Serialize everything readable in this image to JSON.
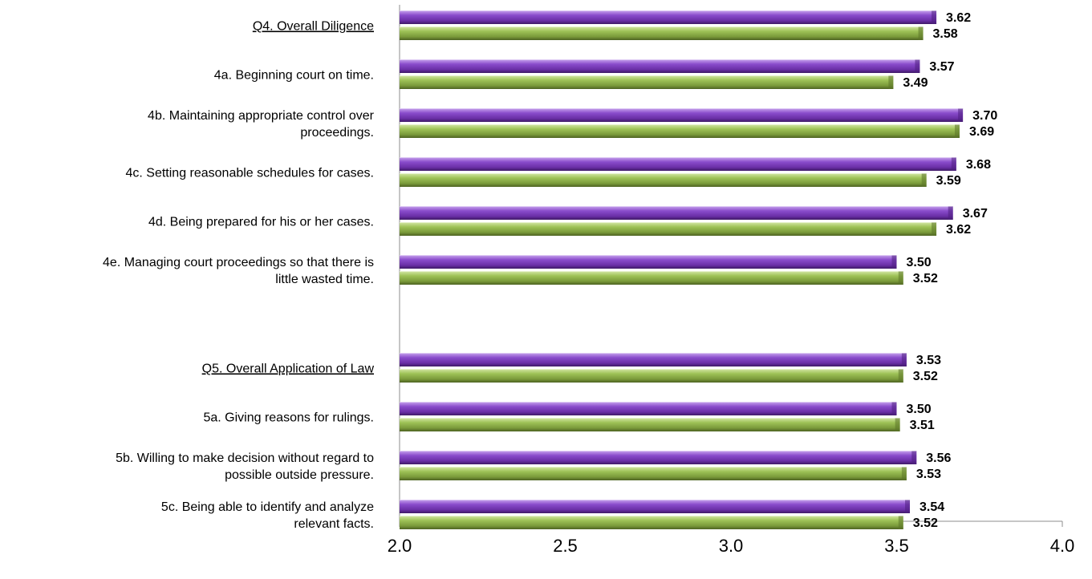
{
  "chart_data": {
    "type": "bar",
    "orientation": "horizontal",
    "title": "",
    "xlabel": "",
    "ylabel": "",
    "xlim": [
      2.0,
      4.0
    ],
    "ticks": [
      "2.0",
      "2.5",
      "3.0",
      "3.5",
      "4.0"
    ],
    "grid": false,
    "legend": "none",
    "categories": [
      {
        "lines": [
          "Q4. Overall Diligence"
        ],
        "header": true,
        "values": [
          3.62,
          3.58
        ],
        "labels": [
          "3.62",
          "3.58"
        ]
      },
      {
        "lines": [
          "4a. Beginning court on time."
        ],
        "header": false,
        "values": [
          3.57,
          3.49
        ],
        "labels": [
          "3.57",
          "3.49"
        ]
      },
      {
        "lines": [
          "4b. Maintaining appropriate control over",
          "proceedings."
        ],
        "header": false,
        "values": [
          3.7,
          3.69
        ],
        "labels": [
          "3.70",
          "3.69"
        ]
      },
      {
        "lines": [
          "4c. Setting reasonable schedules for cases."
        ],
        "header": false,
        "values": [
          3.68,
          3.59
        ],
        "labels": [
          "3.68",
          "3.59"
        ]
      },
      {
        "lines": [
          "4d. Being prepared for his or her cases."
        ],
        "header": false,
        "values": [
          3.67,
          3.62
        ],
        "labels": [
          "3.67",
          "3.62"
        ]
      },
      {
        "lines": [
          "4e. Managing court proceedings so that there is",
          "little wasted time."
        ],
        "header": false,
        "values": [
          3.5,
          3.52
        ],
        "labels": [
          "3.50",
          "3.52"
        ]
      },
      {
        "lines": [
          "Q5. Overall Application of Law"
        ],
        "header": true,
        "values": [
          3.53,
          3.52
        ],
        "labels": [
          "3.53",
          "3.52"
        ]
      },
      {
        "lines": [
          "5a. Giving reasons for rulings."
        ],
        "header": false,
        "values": [
          3.5,
          3.51
        ],
        "labels": [
          "3.50",
          "3.51"
        ]
      },
      {
        "lines": [
          "5b. Willing to make decision without regard to",
          "possible outside pressure."
        ],
        "header": false,
        "values": [
          3.56,
          3.53
        ],
        "labels": [
          "3.56",
          "3.53"
        ]
      },
      {
        "lines": [
          "5c. Being able to identify and analyze",
          "relevant facts."
        ],
        "header": false,
        "values": [
          3.54,
          3.52
        ],
        "labels": [
          "3.54",
          "3.52"
        ]
      }
    ],
    "series_colors": [
      "#7b3fb8",
      "#8db046"
    ]
  }
}
